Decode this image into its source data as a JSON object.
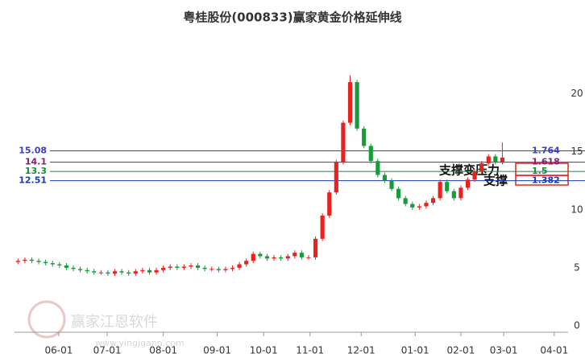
{
  "chart_data": {
    "type": "candlestick",
    "title": "粤桂股份(000833)赢家黄金价格延伸线",
    "watermark": "赢家江恩软件",
    "watermark_url": "www.yingjgann.com",
    "categories": [
      null,
      null,
      null,
      null,
      null,
      null,
      null,
      null,
      null,
      null,
      null,
      null,
      null,
      null,
      null,
      null,
      null,
      null,
      null,
      null,
      null,
      null,
      null,
      null,
      null,
      null,
      null,
      null,
      null,
      null,
      null,
      null,
      null,
      null,
      null,
      null,
      null,
      null,
      null,
      null,
      null,
      null,
      null,
      null,
      null,
      null,
      null,
      null,
      null,
      null,
      null,
      null,
      null,
      null,
      null,
      null,
      null,
      null,
      null,
      null,
      null,
      null,
      null,
      null,
      null,
      null,
      null,
      null,
      null,
      null,
      null
    ],
    "open": [
      5.5,
      5.6,
      5.7,
      5.6,
      5.5,
      5.4,
      5.3,
      5.2,
      5.0,
      4.9,
      4.8,
      4.7,
      4.6,
      4.6,
      4.5,
      4.7,
      4.6,
      4.5,
      4.7,
      4.8,
      4.6,
      4.8,
      5.0,
      5.1,
      5.0,
      5.1,
      5.2,
      5.0,
      4.9,
      4.9,
      4.8,
      4.9,
      5.0,
      5.3,
      5.6,
      6.2,
      6.0,
      5.8,
      5.9,
      5.8,
      6.0,
      6.3,
      5.9,
      5.9,
      7.5,
      9.5,
      11.5,
      14.1,
      17.5,
      21.0,
      17.0,
      15.5,
      14.2,
      13.0,
      12.5,
      11.8,
      11.0,
      10.5,
      10.2,
      10.3,
      10.6,
      11.0,
      12.4,
      11.6,
      11.0,
      11.9,
      12.6,
      13.3,
      14.0,
      14.6,
      14.1
    ],
    "high": [
      5.8,
      5.9,
      5.9,
      5.8,
      5.7,
      5.6,
      5.5,
      5.4,
      5.2,
      5.1,
      5.0,
      4.9,
      4.8,
      4.8,
      4.9,
      4.9,
      4.8,
      4.9,
      5.0,
      5.0,
      5.0,
      5.2,
      5.3,
      5.3,
      5.3,
      5.4,
      5.4,
      5.2,
      5.1,
      5.1,
      5.1,
      5.2,
      5.5,
      5.8,
      6.4,
      6.4,
      6.2,
      6.1,
      6.1,
      6.2,
      6.5,
      6.5,
      6.1,
      7.7,
      9.7,
      11.7,
      14.3,
      17.7,
      21.6,
      21.2,
      17.2,
      15.7,
      14.4,
      13.2,
      12.7,
      12.0,
      11.2,
      10.7,
      10.5,
      10.8,
      11.2,
      12.6,
      12.6,
      11.8,
      12.1,
      12.8,
      13.5,
      14.2,
      14.8,
      14.8,
      15.8
    ],
    "low": [
      5.3,
      5.4,
      5.4,
      5.3,
      5.2,
      5.1,
      5.0,
      4.8,
      4.7,
      4.6,
      4.5,
      4.4,
      4.4,
      4.3,
      4.3,
      4.4,
      4.3,
      4.3,
      4.5,
      4.4,
      4.4,
      4.6,
      4.8,
      4.8,
      4.8,
      4.9,
      4.8,
      4.7,
      4.7,
      4.6,
      4.6,
      4.7,
      4.8,
      5.1,
      5.4,
      5.8,
      5.6,
      5.6,
      5.6,
      5.6,
      5.8,
      5.7,
      5.7,
      5.7,
      7.3,
      9.3,
      11.3,
      13.9,
      17.3,
      16.8,
      15.3,
      14.0,
      12.8,
      12.3,
      11.6,
      10.8,
      10.3,
      10.0,
      10.0,
      10.1,
      10.4,
      10.8,
      11.4,
      10.8,
      10.8,
      11.7,
      12.4,
      13.1,
      13.8,
      13.9,
      13.9
    ],
    "close": [
      5.6,
      5.7,
      5.6,
      5.5,
      5.4,
      5.3,
      5.2,
      5.0,
      4.9,
      4.8,
      4.7,
      4.6,
      4.6,
      4.5,
      4.7,
      4.6,
      4.5,
      4.7,
      4.8,
      4.6,
      4.8,
      5.0,
      5.1,
      5.0,
      5.1,
      5.2,
      5.0,
      4.9,
      4.9,
      4.8,
      4.9,
      5.0,
      5.3,
      5.6,
      6.2,
      6.0,
      5.8,
      5.9,
      5.8,
      6.0,
      6.3,
      5.9,
      5.9,
      7.5,
      9.5,
      11.5,
      14.1,
      17.5,
      21.0,
      17.0,
      15.5,
      14.2,
      13.0,
      12.5,
      11.8,
      11.0,
      10.5,
      10.2,
      10.3,
      10.6,
      11.0,
      12.4,
      11.6,
      11.0,
      11.9,
      12.6,
      13.3,
      14.0,
      14.6,
      14.1,
      14.5
    ],
    "up_color": "#e8231f",
    "down_color": "#169c3a",
    "xlim": [
      -0.5,
      79.5
    ],
    "xticks": [
      {
        "value": 5.9,
        "label": "06-01"
      },
      {
        "value": 12.9,
        "label": "07-01"
      },
      {
        "value": 21.0,
        "label": "08-01"
      },
      {
        "value": 28.8,
        "label": "09-01"
      },
      {
        "value": 35.5,
        "label": "10-01"
      },
      {
        "value": 42.2,
        "label": "11-01"
      },
      {
        "value": 49.6,
        "label": "12-01"
      },
      {
        "value": 57.4,
        "label": "01-01"
      },
      {
        "value": 64.0,
        "label": "02-01"
      },
      {
        "value": 70.2,
        "label": "03-01"
      },
      {
        "value": 77.5,
        "label": "04-01"
      }
    ],
    "ylim": [
      0,
      26
    ],
    "yticks": [
      0,
      5,
      10,
      15,
      20
    ],
    "levels": [
      {
        "value": 15.08,
        "ratio": 1.764,
        "color": "#3b3bd6"
      },
      {
        "value": 14.1,
        "ratio": 1.618,
        "color": "#8b1a7a"
      },
      {
        "value": 13.3,
        "ratio": 1.5,
        "color": "#1a8a3a"
      },
      {
        "value": 12.51,
        "ratio": 1.382,
        "color": "#1a3ab0"
      }
    ],
    "annotations": [
      "支撑变压力",
      "支撑"
    ]
  }
}
